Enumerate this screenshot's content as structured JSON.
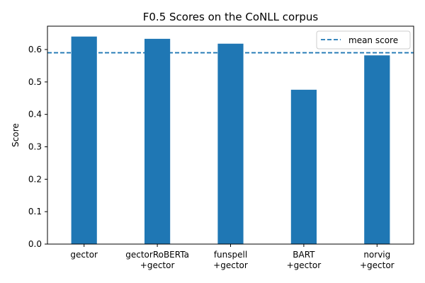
{
  "chart_data": {
    "type": "bar",
    "title": "F0.5 Scores on the CoNLL corpus",
    "xlabel": "",
    "ylabel": "Score",
    "categories": [
      [
        "gector"
      ],
      [
        "gectorRoBERTa",
        "+gector"
      ],
      [
        "funspell",
        "+gector"
      ],
      [
        "BART",
        "+gector"
      ],
      [
        "norvig",
        "+gector"
      ]
    ],
    "values": [
      0.64,
      0.633,
      0.618,
      0.476,
      0.582
    ],
    "yticks": [
      0.0,
      0.1,
      0.2,
      0.3,
      0.4,
      0.5,
      0.6
    ],
    "ytick_labels": [
      "0.0",
      "0.1",
      "0.2",
      "0.3",
      "0.4",
      "0.5",
      "0.6"
    ],
    "ylim": [
      0,
      0.672
    ],
    "mean_line": {
      "value": 0.59,
      "label": "mean score"
    },
    "legend": {
      "entries": [
        "mean score"
      ],
      "placement": "top-right"
    },
    "grid": false,
    "colors": {
      "bar": "#1f77b4",
      "mean_line": "#1f77b4"
    }
  }
}
